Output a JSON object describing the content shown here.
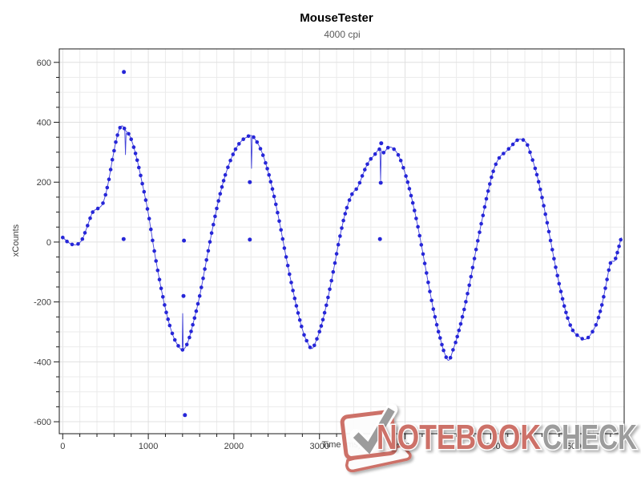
{
  "chart_data": {
    "type": "scatter",
    "title": "MouseTester",
    "subtitle": "4000 cpi",
    "xlabel": "Time (ms)",
    "ylabel": "xCounts",
    "xlim": [
      -40,
      6560
    ],
    "ylim": [
      -640,
      645
    ],
    "x_major_ticks": [
      0,
      1000,
      2000,
      3000,
      4000,
      5000,
      6000
    ],
    "x_minor_step": 200,
    "y_major_ticks": [
      -600,
      -400,
      -200,
      0,
      200,
      400,
      600
    ],
    "y_minor_step": 50,
    "grid": true,
    "legend": false,
    "colors": {
      "dot": "#2626d8",
      "line": "#4343d8",
      "grid_minor": "#ebebeb",
      "grid_major": "#e0e0e0",
      "axis": "#1a1a1a",
      "tick_label": "#3d3d3d"
    },
    "series": [
      {
        "name": "xCounts",
        "anchors": [
          [
            0,
            15
          ],
          [
            50,
            2
          ],
          [
            110,
            -8
          ],
          [
            170,
            -8
          ],
          [
            230,
            10
          ],
          [
            290,
            55
          ],
          [
            350,
            100
          ],
          [
            410,
            112
          ],
          [
            470,
            130
          ],
          [
            530,
            195
          ],
          [
            590,
            290
          ],
          [
            645,
            362
          ],
          [
            690,
            388
          ],
          [
            735,
            372
          ],
          [
            790,
            350
          ],
          [
            860,
            285
          ],
          [
            930,
            195
          ],
          [
            1000,
            95
          ],
          [
            1070,
            -30
          ],
          [
            1140,
            -140
          ],
          [
            1210,
            -235
          ],
          [
            1280,
            -305
          ],
          [
            1340,
            -342
          ],
          [
            1400,
            -360
          ],
          [
            1460,
            -335
          ],
          [
            1530,
            -265
          ],
          [
            1600,
            -180
          ],
          [
            1670,
            -75
          ],
          [
            1740,
            30
          ],
          [
            1810,
            125
          ],
          [
            1880,
            205
          ],
          [
            1950,
            265
          ],
          [
            2020,
            310
          ],
          [
            2090,
            338
          ],
          [
            2150,
            350
          ],
          [
            2200,
            356
          ],
          [
            2250,
            342
          ],
          [
            2320,
            305
          ],
          [
            2390,
            245
          ],
          [
            2460,
            165
          ],
          [
            2530,
            70
          ],
          [
            2600,
            -35
          ],
          [
            2670,
            -135
          ],
          [
            2740,
            -225
          ],
          [
            2810,
            -300
          ],
          [
            2860,
            -335
          ],
          [
            2910,
            -356
          ],
          [
            2960,
            -330
          ],
          [
            3030,
            -270
          ],
          [
            3100,
            -185
          ],
          [
            3170,
            -85
          ],
          [
            3240,
            20
          ],
          [
            3310,
            105
          ],
          [
            3380,
            160
          ],
          [
            3450,
            185
          ],
          [
            3520,
            235
          ],
          [
            3580,
            270
          ],
          [
            3640,
            290
          ],
          [
            3700,
            310
          ],
          [
            3745,
            298
          ],
          [
            3810,
            317
          ],
          [
            3870,
            310
          ],
          [
            3930,
            285
          ],
          [
            4000,
            230
          ],
          [
            4070,
            155
          ],
          [
            4140,
            65
          ],
          [
            4210,
            -40
          ],
          [
            4280,
            -150
          ],
          [
            4350,
            -250
          ],
          [
            4410,
            -320
          ],
          [
            4460,
            -370
          ],
          [
            4510,
            -395
          ],
          [
            4560,
            -360
          ],
          [
            4620,
            -305
          ],
          [
            4690,
            -225
          ],
          [
            4760,
            -130
          ],
          [
            4830,
            -25
          ],
          [
            4900,
            75
          ],
          [
            4970,
            170
          ],
          [
            5040,
            245
          ],
          [
            5110,
            285
          ],
          [
            5170,
            300
          ],
          [
            5240,
            320
          ],
          [
            5310,
            340
          ],
          [
            5360,
            343
          ],
          [
            5420,
            330
          ],
          [
            5470,
            290
          ],
          [
            5540,
            225
          ],
          [
            5610,
            135
          ],
          [
            5680,
            35
          ],
          [
            5750,
            -70
          ],
          [
            5820,
            -165
          ],
          [
            5890,
            -245
          ],
          [
            5960,
            -295
          ],
          [
            6030,
            -315
          ],
          [
            6105,
            -325
          ],
          [
            6170,
            -308
          ],
          [
            6240,
            -270
          ],
          [
            6300,
            -210
          ],
          [
            6350,
            -140
          ],
          [
            6400,
            -70
          ],
          [
            6450,
            -62
          ],
          [
            6490,
            -25
          ],
          [
            6530,
            15
          ]
        ],
        "outliers": [
          [
            715,
            568
          ],
          [
            712,
            10
          ],
          [
            1411,
            -180
          ],
          [
            1417,
            5
          ],
          [
            1428,
            -578
          ],
          [
            2186,
            200
          ],
          [
            2186,
            8
          ],
          [
            3722,
            330
          ],
          [
            3716,
            198
          ],
          [
            3707,
            10
          ]
        ],
        "line_glitches": [
          [
            [
              725,
              378
            ],
            [
              733,
              291
            ],
            [
              741,
              365
            ]
          ],
          [
            [
              1396,
              -352
            ],
            [
              1402,
              -238
            ],
            [
              1408,
              -360
            ]
          ],
          [
            [
              2198,
              352
            ],
            [
              2206,
              245
            ],
            [
              2214,
              348
            ]
          ],
          [
            [
              3706,
              308
            ],
            [
              3714,
              206
            ],
            [
              3722,
              300
            ]
          ]
        ]
      }
    ]
  },
  "watermark": {
    "text_red": "NOTEBOOK",
    "text_gray": "CHECK",
    "red": "#cd7168",
    "gray": "#9c9c9c",
    "logo": "notebookcheck-laptop-checkmark"
  }
}
